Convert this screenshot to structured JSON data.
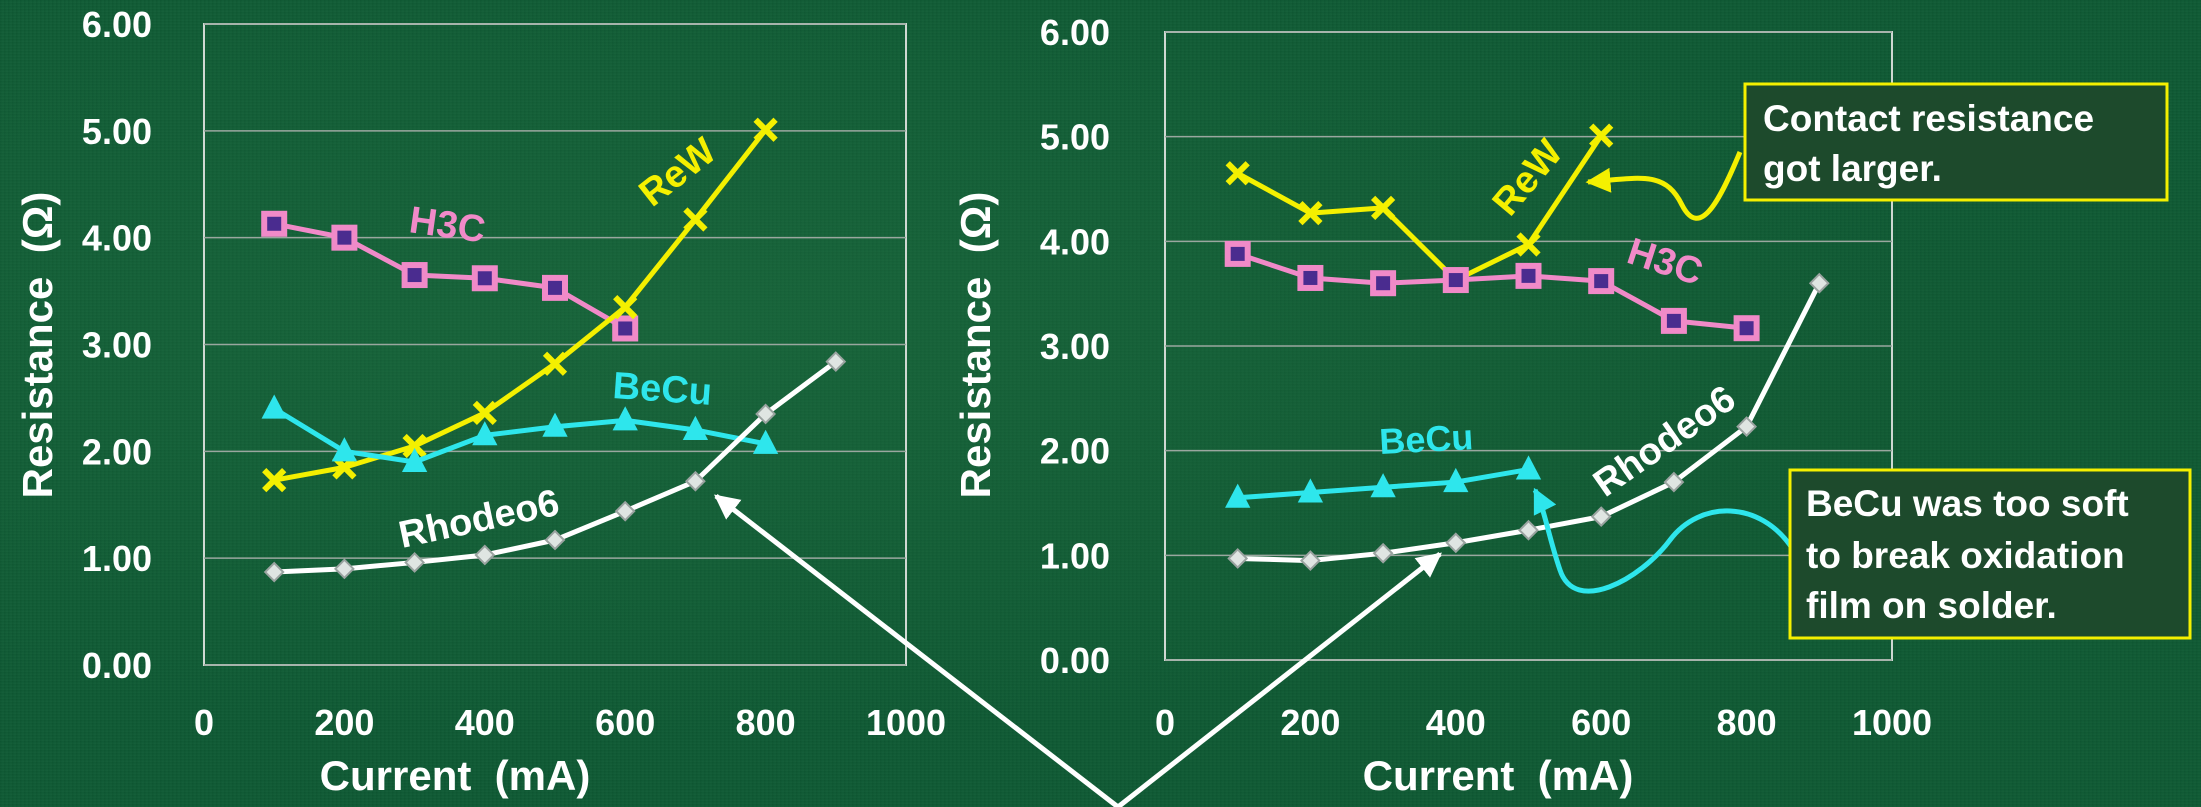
{
  "colors": {
    "background": "#0e5a34",
    "grid": "#9aa79f",
    "ReW": "#f4f000",
    "H3C": "#f08ac8",
    "BeCu": "#2ee6ec",
    "Rhodeo6": "#ffffff",
    "annotation_border": "#f4f000"
  },
  "chart_data": [
    {
      "type": "line",
      "title": "",
      "xlabel": "Current  (mA)",
      "ylabel": "Resistance  (Ω)",
      "xlim": [
        0,
        1000
      ],
      "ylim": [
        0,
        6
      ],
      "xticks": [
        "0",
        "200",
        "400",
        "600",
        "800",
        "1000"
      ],
      "yticks": [
        "0.00",
        "1.00",
        "2.00",
        "3.00",
        "4.00",
        "5.00",
        "6.00"
      ],
      "grid": "horizontal",
      "series": [
        {
          "name": "H3C",
          "marker": "square",
          "x": [
            100,
            200,
            300,
            400,
            500,
            600
          ],
          "y": [
            4.13,
            4.0,
            3.65,
            3.62,
            3.53,
            3.15
          ]
        },
        {
          "name": "ReW",
          "marker": "x",
          "x": [
            100,
            200,
            300,
            400,
            500,
            600,
            700,
            800
          ],
          "y": [
            1.73,
            1.85,
            2.05,
            2.36,
            2.82,
            3.35,
            4.17,
            5.01
          ]
        },
        {
          "name": "BeCu",
          "marker": "triangle",
          "x": [
            100,
            200,
            300,
            400,
            500,
            600,
            700,
            800
          ],
          "y": [
            2.4,
            2.0,
            1.9,
            2.15,
            2.23,
            2.29,
            2.2,
            2.07
          ]
        },
        {
          "name": "Rhodeo6",
          "marker": "diamond",
          "x": [
            100,
            200,
            300,
            400,
            500,
            600,
            700,
            800,
            900
          ],
          "y": [
            0.87,
            0.9,
            0.96,
            1.03,
            1.17,
            1.44,
            1.72,
            2.35,
            2.84
          ]
        }
      ]
    },
    {
      "type": "line",
      "title": "",
      "xlabel": "Current  (mA)",
      "ylabel": "Resistance  (Ω)",
      "xlim": [
        0,
        1000
      ],
      "ylim": [
        0,
        6
      ],
      "xticks": [
        "0",
        "200",
        "400",
        "600",
        "800",
        "1000"
      ],
      "yticks": [
        "0.00",
        "1.00",
        "2.00",
        "3.00",
        "4.00",
        "5.00",
        "6.00"
      ],
      "grid": "horizontal",
      "series": [
        {
          "name": "ReW",
          "marker": "x",
          "x": [
            100,
            200,
            300,
            400,
            500,
            600
          ],
          "y": [
            4.65,
            4.27,
            4.32,
            3.63,
            3.97,
            5.01
          ]
        },
        {
          "name": "H3C",
          "marker": "square",
          "x": [
            100,
            200,
            300,
            400,
            500,
            600,
            700,
            800
          ],
          "y": [
            3.88,
            3.65,
            3.6,
            3.63,
            3.67,
            3.62,
            3.24,
            3.17
          ]
        },
        {
          "name": "BeCu",
          "marker": "triangle",
          "x": [
            100,
            200,
            300,
            400,
            500
          ],
          "y": [
            1.55,
            1.6,
            1.65,
            1.7,
            1.82
          ]
        },
        {
          "name": "Rhodeo6",
          "marker": "diamond",
          "x": [
            100,
            200,
            300,
            400,
            500,
            600,
            700,
            800,
            900
          ],
          "y": [
            0.97,
            0.95,
            1.02,
            1.12,
            1.24,
            1.37,
            1.7,
            2.23,
            3.6
          ]
        }
      ]
    }
  ],
  "annotations": {
    "contact_resistance": [
      "Contact resistance",
      "got larger."
    ],
    "becu_soft": [
      "BeCu was too soft",
      "to break oxidation",
      "film on solder."
    ]
  }
}
